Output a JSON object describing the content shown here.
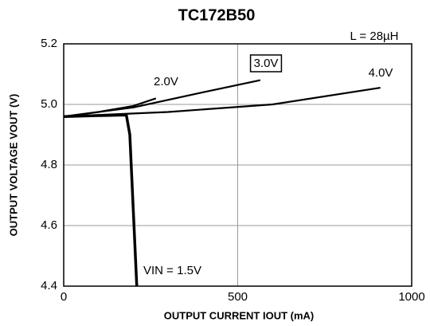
{
  "chart_data": {
    "type": "line",
    "title": "TC172B50",
    "annotation": "L = 28µH",
    "xlabel": "OUTPUT CURRENT IOUT (mA)",
    "ylabel": "OUTPUT VOLTAGE VOUT (V)",
    "xlim": [
      0,
      1000
    ],
    "xticks": [
      0,
      500,
      1000
    ],
    "ylim": [
      4.4,
      5.2
    ],
    "yticks": [
      4.4,
      4.6,
      4.8,
      {
        "value": 5,
        "label": "5.0"
      },
      5.2
    ],
    "grid": true,
    "series": [
      {
        "name": "VIN = 1.5V",
        "color": "#000",
        "x": [
          0,
          100,
          180,
          190,
          210
        ],
        "values": [
          4.96,
          4.963,
          4.965,
          4.9,
          4.4
        ]
      },
      {
        "name": "2.0V",
        "color": "#000",
        "x": [
          0,
          100,
          200,
          265
        ],
        "values": [
          4.96,
          4.975,
          4.995,
          5.02
        ]
      },
      {
        "name": "3.0V",
        "color": "#000",
        "x": [
          0,
          200,
          400,
          565
        ],
        "values": [
          4.96,
          4.99,
          5.04,
          5.08
        ],
        "boxed": true
      },
      {
        "name": "4.0V",
        "color": "#000",
        "x": [
          0,
          300,
          600,
          910
        ],
        "values": [
          4.96,
          4.975,
          5.0,
          5.055
        ]
      }
    ]
  }
}
